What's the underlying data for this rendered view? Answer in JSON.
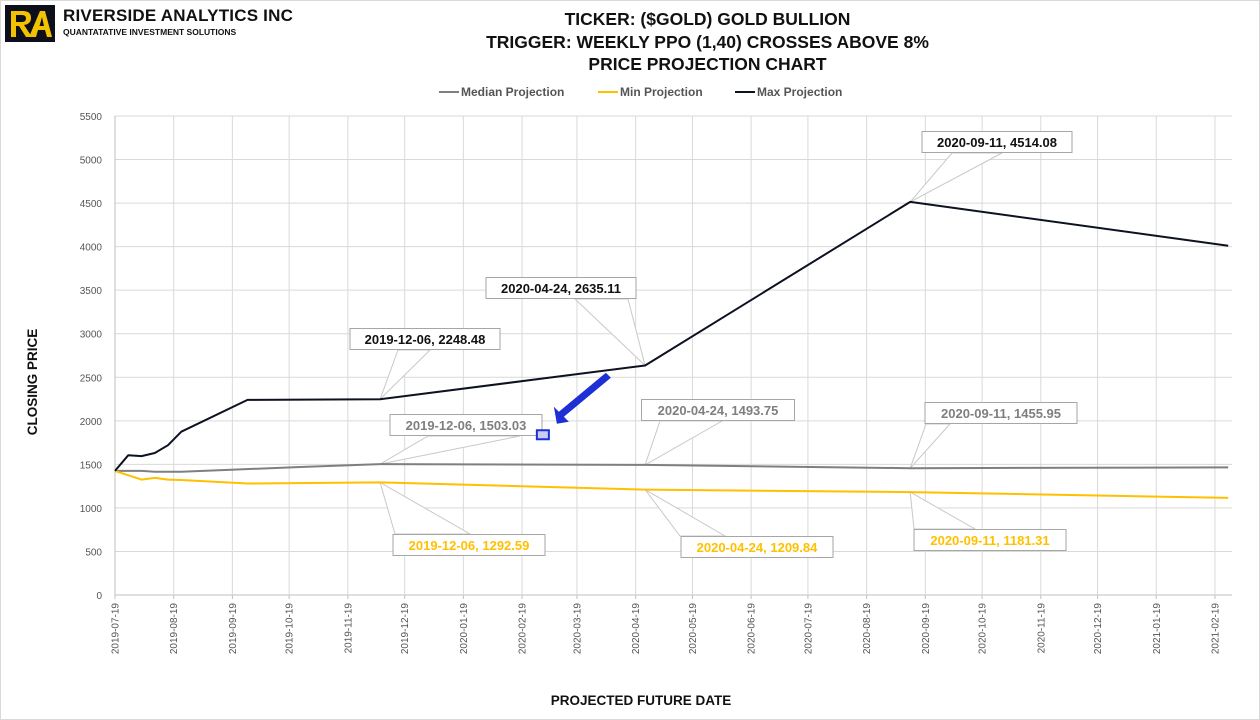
{
  "brand": {
    "logo_text": "RA",
    "name": "RIVERSIDE ANALYTICS INC",
    "tagline": "QUANTATATIVE INVESTMENT SOLUTIONS"
  },
  "chart_data": {
    "type": "line",
    "title_lines": [
      "TICKER: ($GOLD) GOLD BULLION",
      "TRIGGER: WEEKLY PPO (1,40) CROSSES ABOVE 8%",
      "PRICE PROJECTION CHART"
    ],
    "xlabel": "PROJECTED FUTURE DATE",
    "ylabel": "CLOSING PRICE",
    "ylim": [
      0,
      5500
    ],
    "yticks": [
      0,
      500,
      1000,
      1500,
      2000,
      2500,
      3000,
      3500,
      4000,
      4500,
      5000,
      5500
    ],
    "xrange": [
      "2019-07-19",
      "2021-02-28"
    ],
    "xticks": [
      "2019-07-19",
      "2019-08-19",
      "2019-09-19",
      "2019-10-19",
      "2019-11-19",
      "2019-12-19",
      "2020-01-19",
      "2020-02-19",
      "2020-03-19",
      "2020-04-19",
      "2020-05-19",
      "2020-06-19",
      "2020-07-19",
      "2020-08-19",
      "2020-09-19",
      "2020-10-19",
      "2020-11-19",
      "2020-12-19",
      "2021-01-19",
      "2021-02-19"
    ],
    "grid": true,
    "legend_position": "top-center",
    "series": [
      {
        "name": "Median Projection",
        "color": "#7f7f7f",
        "points": [
          [
            "2019-07-19",
            1425
          ],
          [
            "2019-08-02",
            1425
          ],
          [
            "2019-08-09",
            1415
          ],
          [
            "2019-08-23",
            1415
          ],
          [
            "2019-09-20",
            1440
          ],
          [
            "2019-10-25",
            1470
          ],
          [
            "2019-12-06",
            1503.03
          ],
          [
            "2020-04-24",
            1493.75
          ],
          [
            "2020-09-11",
            1455.95
          ],
          [
            "2021-02-26",
            1465
          ]
        ]
      },
      {
        "name": "Min Projection",
        "color": "#ffc000",
        "points": [
          [
            "2019-07-19",
            1425
          ],
          [
            "2019-08-02",
            1325
          ],
          [
            "2019-08-09",
            1345
          ],
          [
            "2019-08-16",
            1325
          ],
          [
            "2019-08-23",
            1320
          ],
          [
            "2019-09-27",
            1280
          ],
          [
            "2019-12-06",
            1292.59
          ],
          [
            "2020-04-24",
            1209.84
          ],
          [
            "2020-09-11",
            1181.31
          ],
          [
            "2021-02-26",
            1115
          ]
        ]
      },
      {
        "name": "Max Projection",
        "color": "#0d1222",
        "points": [
          [
            "2019-07-19",
            1425
          ],
          [
            "2019-07-26",
            1605
          ],
          [
            "2019-08-02",
            1595
          ],
          [
            "2019-08-09",
            1630
          ],
          [
            "2019-08-16",
            1720
          ],
          [
            "2019-08-23",
            1875
          ],
          [
            "2019-09-27",
            2240
          ],
          [
            "2019-12-06",
            2248.48
          ],
          [
            "2020-04-24",
            2635.11
          ],
          [
            "2020-09-11",
            4514.08
          ],
          [
            "2021-02-26",
            4010
          ]
        ]
      }
    ],
    "annotations": [
      {
        "text": "2020-09-11, 4514.08",
        "series": "Max Projection"
      },
      {
        "text": "2020-04-24, 2635.11",
        "series": "Max Projection"
      },
      {
        "text": "2019-12-06, 2248.48",
        "series": "Max Projection"
      },
      {
        "text": "2019-12-06, 1503.03",
        "series": "Median Projection"
      },
      {
        "text": "2020-04-24, 1493.75",
        "series": "Median Projection"
      },
      {
        "text": "2020-09-11, 1455.95",
        "series": "Median Projection"
      },
      {
        "text": "2019-12-06, 1292.59",
        "series": "Min Projection"
      },
      {
        "text": "2020-04-24, 1209.84",
        "series": "Min Projection"
      },
      {
        "text": "2020-09-11, 1181.31",
        "series": "Min Projection"
      }
    ],
    "marker": {
      "date": "2020-03-01",
      "value": 1840,
      "color": "#1f2fd6"
    }
  },
  "colors": {
    "grid": "#d9d9d9",
    "axis": "#bfbfbf",
    "label_border": "#a6a6a6",
    "label_bg": "#ffffff"
  }
}
